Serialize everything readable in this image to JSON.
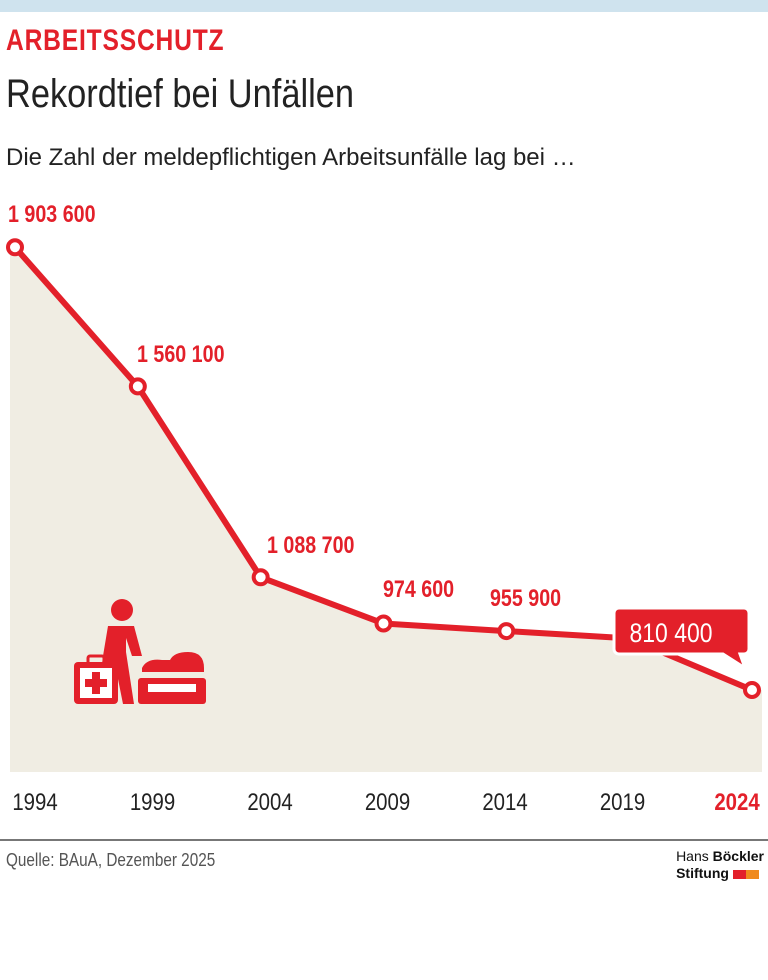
{
  "header": {
    "kicker": "ARBEITSSCHUTZ",
    "title": "Rekordtief bei Unfällen",
    "subtitle": "Die Zahl der meldepflichtigen Arbeitsunfälle lag bei …"
  },
  "chart_data": {
    "type": "area",
    "title": "Rekordtief bei Unfällen",
    "xlabel": "",
    "ylabel": "",
    "x": [
      1994,
      1999,
      2004,
      2009,
      2014,
      2019,
      2024
    ],
    "x_tick_labels": [
      "1994",
      "1999",
      "2004",
      "2009",
      "2014",
      "2019",
      "2024"
    ],
    "values": [
      1903600,
      1560100,
      1088700,
      974600,
      955900,
      938000,
      810400
    ],
    "data_labels": [
      "1 903 600",
      "1 560 100",
      "1 088 700",
      "974 600",
      "955 900",
      "",
      "810 400"
    ],
    "markers": [
      true,
      true,
      true,
      true,
      true,
      false,
      true
    ],
    "highlight": {
      "x": 2024,
      "label": "810 400"
    },
    "grid": false,
    "colors": {
      "line": "#e3202a",
      "fill": "#f0ede3",
      "highlight_text": "#ffffff",
      "axis_text": "#222222"
    }
  },
  "icon": "first-aid-worker-icon",
  "footer": {
    "source": "Quelle: BAuA, Dezember 2025",
    "logo_line1_a": "Hans ",
    "logo_line1_b": "Böckler",
    "logo_line2": "Stiftung",
    "logo_colors": [
      "#e3202a",
      "#f08a1c"
    ]
  }
}
